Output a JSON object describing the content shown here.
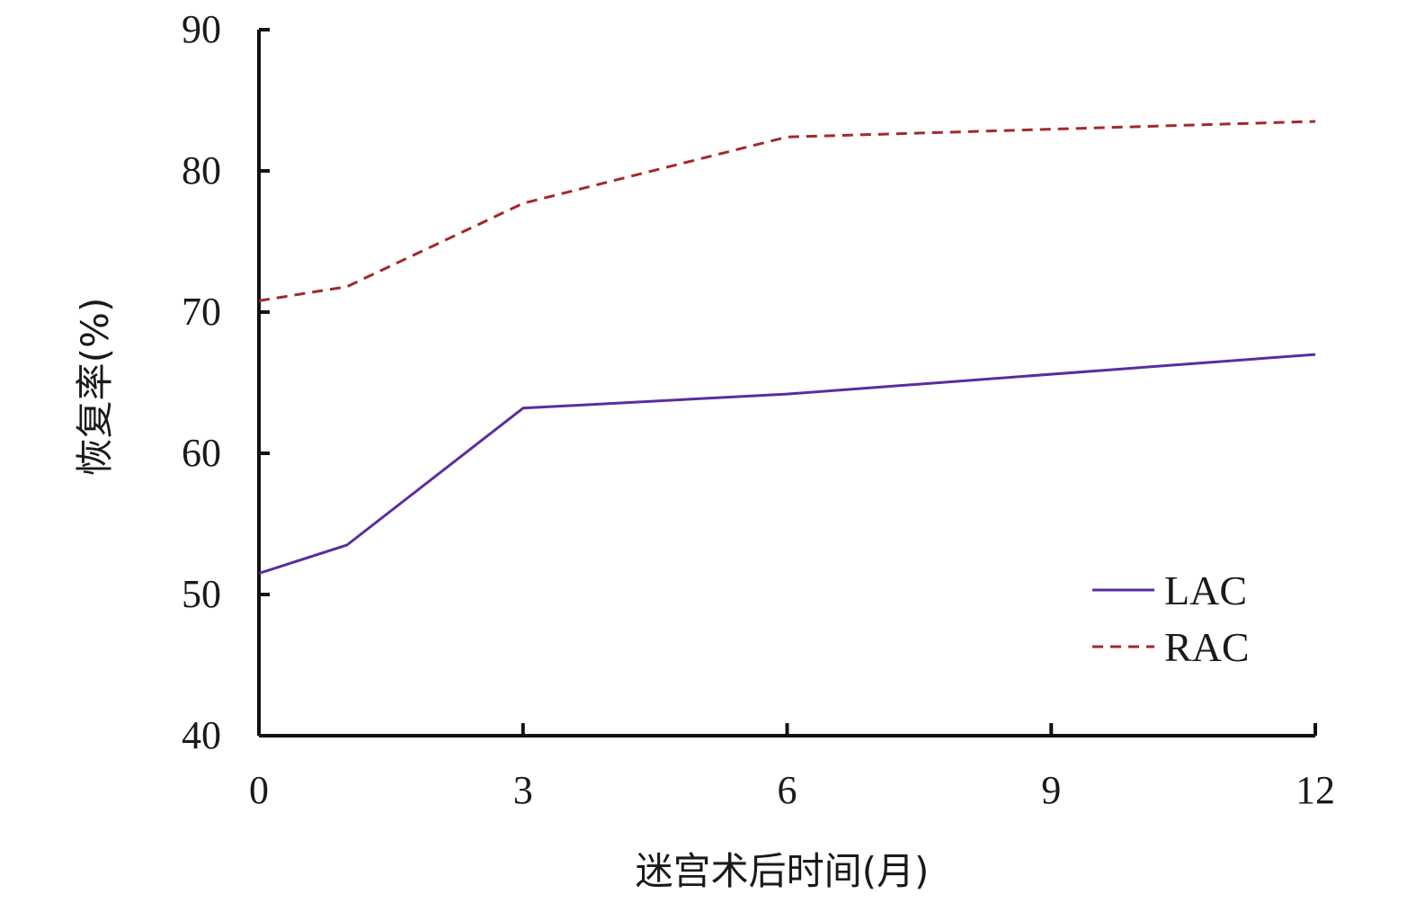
{
  "chart_data": {
    "type": "line",
    "xlabel": "迷宫术后时间(月)",
    "ylabel": "恢复率(%)",
    "xlim": [
      0,
      12
    ],
    "ylim": [
      40,
      90
    ],
    "x_ticks": [
      "0",
      "3",
      "6",
      "9",
      "12"
    ],
    "y_ticks": [
      "40",
      "50",
      "60",
      "70",
      "80",
      "90"
    ],
    "grid": false,
    "legend_position": "bottom-right",
    "series": [
      {
        "name": "LAC",
        "color": "#5b2d9e",
        "style": "solid",
        "points": [
          [
            0,
            51.5
          ],
          [
            1,
            53.5
          ],
          [
            3,
            63.2
          ],
          [
            6,
            64.2
          ],
          [
            12,
            67.0
          ]
        ]
      },
      {
        "name": "RAC",
        "color": "#a3282c",
        "style": "dashed",
        "points": [
          [
            0,
            70.8
          ],
          [
            1,
            71.8
          ],
          [
            3,
            77.7
          ],
          [
            6,
            82.4
          ],
          [
            12,
            83.5
          ]
        ]
      }
    ]
  }
}
